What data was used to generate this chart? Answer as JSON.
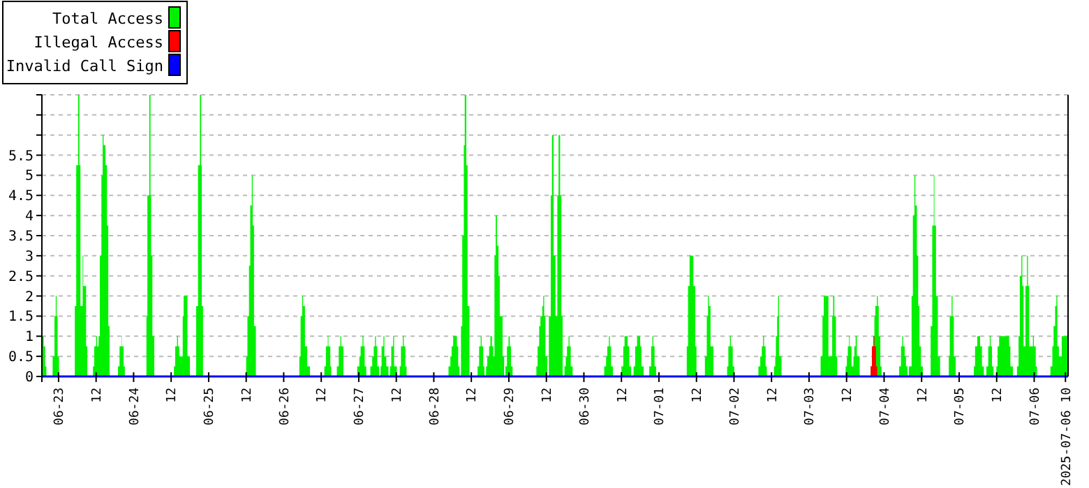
{
  "chart_data": {
    "type": "area",
    "legend": "top left",
    "grid": "y",
    "xlim": [
      "2025-06-22T18:40",
      "2025-07-06T10:50"
    ],
    "xticks": [
      {
        "value": "2025-06-23T00:00",
        "label": "06-23"
      },
      {
        "value": "2025-06-23T12:00",
        "label": "12"
      },
      {
        "value": "2025-06-24T00:00",
        "label": "06-24"
      },
      {
        "value": "2025-06-24T12:00",
        "label": "12"
      },
      {
        "value": "2025-06-25T00:00",
        "label": "06-25"
      },
      {
        "value": "2025-06-25T12:00",
        "label": "12"
      },
      {
        "value": "2025-06-26T00:00",
        "label": "06-26"
      },
      {
        "value": "2025-06-26T12:00",
        "label": "12"
      },
      {
        "value": "2025-06-27T00:00",
        "label": "06-27"
      },
      {
        "value": "2025-06-27T12:00",
        "label": "12"
      },
      {
        "value": "2025-06-28T00:00",
        "label": "06-28"
      },
      {
        "value": "2025-06-28T12:00",
        "label": "12"
      },
      {
        "value": "2025-06-29T00:00",
        "label": "06-29"
      },
      {
        "value": "2025-06-29T12:00",
        "label": "12"
      },
      {
        "value": "2025-06-30T00:00",
        "label": "06-30"
      },
      {
        "value": "2025-06-30T12:00",
        "label": "12"
      },
      {
        "value": "2025-07-01T00:00",
        "label": "07-01"
      },
      {
        "value": "2025-07-01T12:00",
        "label": "12"
      },
      {
        "value": "2025-07-02T00:00",
        "label": "07-02"
      },
      {
        "value": "2025-07-02T12:00",
        "label": "12"
      },
      {
        "value": "2025-07-03T00:00",
        "label": "07-03"
      },
      {
        "value": "2025-07-03T12:00",
        "label": "12"
      },
      {
        "value": "2025-07-04T00:00",
        "label": "07-04"
      },
      {
        "value": "2025-07-04T12:00",
        "label": "12"
      },
      {
        "value": "2025-07-05T00:00",
        "label": "07-05"
      },
      {
        "value": "2025-07-05T12:00",
        "label": "12"
      },
      {
        "value": "2025-07-06T00:00",
        "label": "07-06"
      },
      {
        "value": "2025-07-06T10:00",
        "label": "2025-07-06 10"
      }
    ],
    "ylim": [
      0,
      7
    ],
    "yticks": [
      0,
      0.5,
      1,
      1.5,
      2,
      2.5,
      3,
      3.5,
      4,
      4.5,
      5,
      5.5,
      {
        "value": 6,
        "label": null
      },
      {
        "value": 6.5,
        "label": null
      },
      {
        "value": 7,
        "label": null
      }
    ],
    "series": [
      {
        "name": "Total Access",
        "color": "#00f000",
        "x": [
          "2025-06-22T18:40",
          "2025-06-22T19:15",
          "2025-06-22T19:42",
          "2025-06-22T20:06",
          "2025-06-22T22:06",
          "2025-06-22T22:42",
          "2025-06-22T23:06",
          "2025-06-22T23:24",
          "2025-06-22T23:42",
          "2025-06-23T00:09",
          "2025-06-23T05:12",
          "2025-06-23T05:39",
          "2025-06-23T06:15",
          "2025-06-23T06:40",
          "2025-06-23T07:00",
          "2025-06-23T07:42",
          "2025-06-23T07:54",
          "2025-06-23T08:48",
          "2025-06-23T09:12",
          "2025-06-23T11:00",
          "2025-06-23T11:24",
          "2025-06-23T12:00",
          "2025-06-23T12:18",
          "2025-06-23T12:48",
          "2025-06-23T13:12",
          "2025-06-23T13:42",
          "2025-06-23T14:06",
          "2025-06-23T14:24",
          "2025-06-23T15:00",
          "2025-06-23T15:30",
          "2025-06-23T15:54",
          "2025-06-23T16:18",
          "2025-06-23T19:00",
          "2025-06-23T19:30",
          "2025-06-23T20:06",
          "2025-06-23T20:12",
          "2025-06-23T20:48",
          "2025-06-23T21:12",
          "2025-06-24T04:06",
          "2025-06-24T04:24",
          "2025-06-24T05:00",
          "2025-06-24T05:24",
          "2025-06-24T05:36",
          "2025-06-24T06:00",
          "2025-06-24T06:36",
          "2025-06-24T12:54",
          "2025-06-24T13:18",
          "2025-06-24T13:54",
          "2025-06-24T14:12",
          "2025-06-24T14:36",
          "2025-06-24T15:42",
          "2025-06-24T16:00",
          "2025-06-24T17:12",
          "2025-06-24T18:00",
          "2025-06-24T20:00",
          "2025-06-24T20:36",
          "2025-06-24T21:12",
          "2025-06-24T21:36",
          "2025-06-24T21:48",
          "2025-06-24T22:12",
          "2025-06-25T12:00",
          "2025-06-25T12:24",
          "2025-06-25T12:54",
          "2025-06-25T13:18",
          "2025-06-25T13:48",
          "2025-06-25T14:06",
          "2025-06-25T14:30",
          "2025-06-25T15:06",
          "2025-06-26T05:00",
          "2025-06-26T05:24",
          "2025-06-26T05:54",
          "2025-06-26T06:12",
          "2025-06-26T06:48",
          "2025-06-26T07:30",
          "2025-06-26T08:24",
          "2025-06-26T13:00",
          "2025-06-26T13:30",
          "2025-06-26T14:06",
          "2025-06-26T14:18",
          "2025-06-26T14:54",
          "2025-06-26T15:12",
          "2025-06-26T17:00",
          "2025-06-26T17:36",
          "2025-06-26T18:06",
          "2025-06-26T18:24",
          "2025-06-26T19:06",
          "2025-06-26T23:30",
          "2025-06-27T00:12",
          "2025-06-27T00:36",
          "2025-06-27T01:12",
          "2025-06-27T01:30",
          "2025-06-27T01:54",
          "2025-06-27T02:24",
          "2025-06-27T03:42",
          "2025-06-27T04:18",
          "2025-06-27T04:48",
          "2025-06-27T05:12",
          "2025-06-27T05:30",
          "2025-06-27T05:54",
          "2025-06-27T06:30",
          "2025-06-27T07:00",
          "2025-06-27T07:18",
          "2025-06-27T07:54",
          "2025-06-27T08:12",
          "2025-06-27T08:48",
          "2025-06-27T09:30",
          "2025-06-27T10:00",
          "2025-06-27T10:24",
          "2025-06-27T11:00",
          "2025-06-27T11:18",
          "2025-06-27T12:12",
          "2025-06-27T13:06",
          "2025-06-27T13:30",
          "2025-06-27T14:06",
          "2025-06-27T14:24",
          "2025-06-27T14:54",
          "2025-06-27T15:18",
          "2025-06-28T04:42",
          "2025-06-28T05:18",
          "2025-06-28T05:42",
          "2025-06-28T06:12",
          "2025-06-28T07:24",
          "2025-06-28T07:48",
          "2025-06-28T08:12",
          "2025-06-28T08:42",
          "2025-06-28T09:06",
          "2025-06-28T09:36",
          "2025-06-28T09:54",
          "2025-06-28T10:24",
          "2025-06-28T10:48",
          "2025-06-28T11:24",
          "2025-06-28T14:00",
          "2025-06-28T14:30",
          "2025-06-28T15:00",
          "2025-06-28T15:18",
          "2025-06-28T15:48",
          "2025-06-28T16:12",
          "2025-06-28T16:42",
          "2025-06-28T17:06",
          "2025-06-28T17:42",
          "2025-06-28T18:06",
          "2025-06-28T18:36",
          "2025-06-28T19:00",
          "2025-06-28T19:24",
          "2025-06-28T19:48",
          "2025-06-28T20:12",
          "2025-06-28T20:42",
          "2025-06-28T21:06",
          "2025-06-28T22:00",
          "2025-06-28T22:30",
          "2025-06-28T22:54",
          "2025-06-28T23:24",
          "2025-06-28T23:54",
          "2025-06-29T00:18",
          "2025-06-29T00:42",
          "2025-06-29T01:12",
          "2025-06-29T08:48",
          "2025-06-29T09:12",
          "2025-06-29T09:42",
          "2025-06-29T10:06",
          "2025-06-29T10:42",
          "2025-06-29T11:00",
          "2025-06-29T11:18",
          "2025-06-29T11:42",
          "2025-06-29T12:18",
          "2025-06-29T12:48",
          "2025-06-29T13:24",
          "2025-06-29T13:48",
          "2025-06-29T14:18",
          "2025-06-29T14:54",
          "2025-06-29T15:30",
          "2025-06-29T15:54",
          "2025-06-29T16:24",
          "2025-06-29T16:48",
          "2025-06-29T17:12",
          "2025-06-29T17:48",
          "2025-06-29T18:12",
          "2025-06-29T18:36",
          "2025-06-29T19:06",
          "2025-06-29T19:24",
          "2025-06-29T19:48",
          "2025-06-29T20:24",
          "2025-06-30T06:30",
          "2025-06-30T07:06",
          "2025-06-30T07:30",
          "2025-06-30T08:00",
          "2025-06-30T08:18",
          "2025-06-30T08:42",
          "2025-06-30T09:18",
          "2025-06-30T12:00",
          "2025-06-30T12:36",
          "2025-06-30T13:00",
          "2025-06-30T14:00",
          "2025-06-30T14:30",
          "2025-06-30T15:06",
          "2025-06-30T15:54",
          "2025-06-30T16:24",
          "2025-06-30T17:00",
          "2025-06-30T18:00",
          "2025-06-30T18:24",
          "2025-06-30T19:06",
          "2025-06-30T20:54",
          "2025-06-30T21:30",
          "2025-06-30T21:54",
          "2025-06-30T22:12",
          "2025-06-30T22:36",
          "2025-06-30T23:06",
          "2025-07-01T08:54",
          "2025-07-01T09:18",
          "2025-07-01T09:48",
          "2025-07-01T11:00",
          "2025-07-01T11:36",
          "2025-07-01T12:00",
          "2025-07-01T14:42",
          "2025-07-01T15:18",
          "2025-07-01T15:42",
          "2025-07-01T16:00",
          "2025-07-01T16:30",
          "2025-07-01T17:24",
          "2025-07-01T21:48",
          "2025-07-01T22:12",
          "2025-07-01T22:42",
          "2025-07-01T23:00",
          "2025-07-01T23:36",
          "2025-07-02T00:06",
          "2025-07-02T07:48",
          "2025-07-02T08:24",
          "2025-07-02T08:54",
          "2025-07-02T09:18",
          "2025-07-02T09:36",
          "2025-07-02T10:06",
          "2025-07-02T10:30",
          "2025-07-02T12:48",
          "2025-07-02T13:12",
          "2025-07-02T13:24",
          "2025-07-02T13:48",
          "2025-07-02T14:06",
          "2025-07-02T14:24",
          "2025-07-02T15:12",
          "2025-07-03T03:42",
          "2025-07-03T04:18",
          "2025-07-03T04:42",
          "2025-07-03T06:12",
          "2025-07-03T07:24",
          "2025-07-03T07:42",
          "2025-07-03T08:06",
          "2025-07-03T08:36",
          "2025-07-03T09:00",
          "2025-07-03T11:42",
          "2025-07-03T12:06",
          "2025-07-03T12:24",
          "2025-07-03T12:48",
          "2025-07-03T13:00",
          "2025-07-03T13:36",
          "2025-07-03T14:12",
          "2025-07-03T14:30",
          "2025-07-03T14:54",
          "2025-07-03T15:18",
          "2025-07-03T16:12",
          "2025-07-03T19:42",
          "2025-07-03T20:06",
          "2025-07-03T20:36",
          "2025-07-03T20:54",
          "2025-07-03T21:12",
          "2025-07-03T21:42",
          "2025-07-03T22:00",
          "2025-07-03T22:18",
          "2025-07-03T22:48",
          "2025-07-03T23:12",
          "2025-07-04T04:48",
          "2025-07-04T05:24",
          "2025-07-04T05:48",
          "2025-07-04T06:06",
          "2025-07-04T06:36",
          "2025-07-04T07:00",
          "2025-07-04T07:30",
          "2025-07-04T07:54",
          "2025-07-04T08:48",
          "2025-07-04T09:12",
          "2025-07-04T09:42",
          "2025-07-04T10:00",
          "2025-07-04T10:30",
          "2025-07-04T10:54",
          "2025-07-04T11:18",
          "2025-07-04T11:48",
          "2025-07-04T12:24",
          "2025-07-04T14:54",
          "2025-07-04T15:24",
          "2025-07-04T15:54",
          "2025-07-04T16:06",
          "2025-07-04T16:36",
          "2025-07-04T17:12",
          "2025-07-04T17:54",
          "2025-07-04T20:42",
          "2025-07-04T21:00",
          "2025-07-04T21:36",
          "2025-07-04T21:54",
          "2025-07-04T22:18",
          "2025-07-04T22:54",
          "2025-07-05T04:42",
          "2025-07-05T05:06",
          "2025-07-05T05:48",
          "2025-07-05T06:42",
          "2025-07-05T07:18",
          "2025-07-05T07:54",
          "2025-07-05T08:42",
          "2025-07-05T09:18",
          "2025-07-05T09:48",
          "2025-07-05T10:06",
          "2025-07-05T10:30",
          "2025-07-05T11:00",
          "2025-07-05T11:54",
          "2025-07-05T12:18",
          "2025-07-05T12:48",
          "2025-07-05T16:00",
          "2025-07-05T16:24",
          "2025-07-05T17:12",
          "2025-07-05T18:30",
          "2025-07-05T19:00",
          "2025-07-05T19:24",
          "2025-07-05T19:54",
          "2025-07-05T20:12",
          "2025-07-05T20:36",
          "2025-07-05T21:12",
          "2025-07-05T21:42",
          "2025-07-05T22:00",
          "2025-07-05T22:24",
          "2025-07-05T23:36",
          "2025-07-05T23:54",
          "2025-07-06T00:30",
          "2025-07-06T00:54",
          "2025-07-06T05:12",
          "2025-07-06T05:48",
          "2025-07-06T06:12",
          "2025-07-06T06:42",
          "2025-07-06T07:06",
          "2025-07-06T07:24",
          "2025-07-06T07:54",
          "2025-07-06T08:48",
          "2025-07-06T10:50"
        ],
        "values": [
          1,
          0.75,
          0.25,
          0,
          0.5,
          1.5,
          2,
          1.5,
          0.5,
          0,
          1.75,
          5.25,
          7,
          5.25,
          1.75,
          3,
          2.25,
          0.75,
          0,
          0.25,
          0.75,
          1,
          0.75,
          1,
          3,
          5,
          6,
          5.75,
          5.25,
          3.75,
          1.25,
          0,
          0.25,
          0.75,
          1,
          0.75,
          0.25,
          0,
          1.5,
          4.5,
          7,
          4.5,
          3,
          1,
          0,
          0.25,
          0.75,
          1,
          0.75,
          0.5,
          1.5,
          2,
          0.5,
          0,
          1.75,
          5.25,
          7,
          5.25,
          1.75,
          0,
          0.5,
          1.5,
          2.75,
          4.25,
          5,
          3.75,
          1.25,
          0,
          0.5,
          1.5,
          2,
          1.75,
          0.75,
          0.25,
          0,
          0.25,
          0.75,
          1,
          0.75,
          0.25,
          0,
          0.25,
          0.75,
          1,
          0.75,
          0,
          0.25,
          0.5,
          0.75,
          1,
          0.75,
          0.25,
          0,
          0.25,
          0.5,
          0.75,
          1,
          0.75,
          0.25,
          0,
          0.25,
          0.75,
          1,
          0.5,
          0.25,
          0,
          0.25,
          0.75,
          1,
          0.25,
          0,
          0.25,
          0.75,
          1,
          0.75,
          0.25,
          0,
          0.25,
          0.5,
          0.75,
          1,
          0.75,
          0.25,
          0,
          1.25,
          3.5,
          5.75,
          7,
          5.25,
          1.75,
          0,
          0.25,
          0.75,
          1,
          0.75,
          0.25,
          0,
          0.25,
          0.5,
          0.75,
          1,
          0.75,
          0.5,
          3,
          4,
          3.25,
          2.5,
          1.5,
          0.5,
          0,
          0.25,
          0.75,
          1,
          0.75,
          0.25,
          0,
          0.25,
          0.75,
          1.25,
          1.5,
          1.75,
          2,
          1.5,
          0.5,
          0,
          1.5,
          4.5,
          6,
          3,
          1.5,
          4.5,
          6,
          4.5,
          1.5,
          0,
          0.25,
          0.5,
          0.75,
          1,
          0.75,
          0.25,
          0,
          0.25,
          0.5,
          0.75,
          1,
          0.75,
          0.25,
          0,
          0.25,
          0.75,
          1,
          0.75,
          0.25,
          0,
          0.25,
          0.75,
          1,
          0.75,
          0.25,
          0,
          0.25,
          0.75,
          1,
          0.75,
          0.25,
          0,
          0.75,
          2.25,
          3,
          2.25,
          0.75,
          0,
          0.5,
          1.5,
          2,
          1.75,
          0.75,
          0,
          0.25,
          0.75,
          1,
          0.75,
          0.25,
          0,
          0.25,
          0.5,
          0.75,
          1,
          0.75,
          0.25,
          0,
          0.25,
          0.5,
          1,
          1.5,
          2,
          0.5,
          0,
          0.5,
          1.5,
          2,
          0.5,
          1.5,
          2,
          1.5,
          0.5,
          0,
          0.25,
          0.5,
          0.75,
          1,
          0.75,
          0.25,
          0.5,
          0.75,
          1,
          0.5,
          0,
          0.25,
          0.75,
          1,
          1.5,
          1.75,
          2,
          1.75,
          1,
          0.25,
          0,
          0.25,
          0.75,
          1,
          0.75,
          0.5,
          0.25,
          0,
          0.25,
          2,
          4,
          5,
          4.25,
          3,
          1.75,
          0.75,
          0.25,
          0,
          1.25,
          3.75,
          5,
          3.75,
          2,
          0.5,
          0,
          0.5,
          1.5,
          2,
          1.5,
          0.5,
          0,
          0.25,
          0.75,
          1,
          0.75,
          0.25,
          0,
          0.25,
          0.75,
          1,
          0.75,
          0.25,
          0,
          0.25,
          0.75,
          1,
          0.75,
          0.25,
          0,
          0.25,
          1,
          2.5,
          3,
          2.25,
          0.75,
          2.25,
          3,
          2.25,
          0.75,
          1,
          0.75,
          0.25,
          0,
          0.25,
          0.75,
          1.25,
          1.75,
          2,
          0.75,
          0.5,
          1,
          1
        ]
      },
      {
        "name": "Illegal Access",
        "color": "#ff0000",
        "x": [
          "2025-07-03T19:42",
          "2025-07-03T20:06",
          "2025-07-03T20:36",
          "2025-07-03T20:54",
          "2025-07-03T21:24",
          "2025-07-03T21:48"
        ],
        "values": [
          0.25,
          0.75,
          1,
          0.75,
          0.25,
          0
        ]
      },
      {
        "name": "Invalid Call Sign",
        "color": "#0000ff",
        "type": "line",
        "x": [
          "2025-06-22T18:40",
          "2025-07-06T10:50"
        ],
        "values": [
          0,
          0
        ]
      }
    ]
  }
}
